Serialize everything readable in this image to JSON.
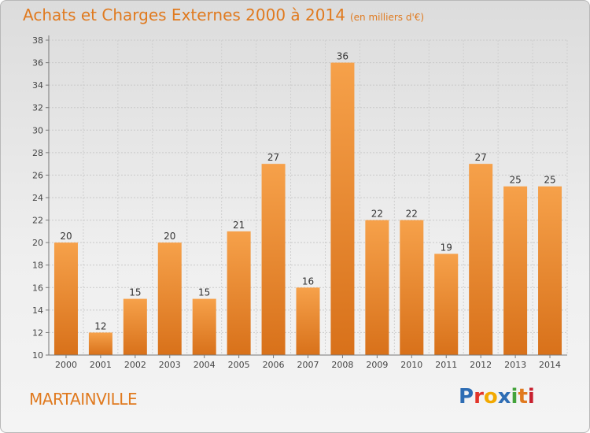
{
  "header": {
    "title": "Achats et Charges Externes 2000 à 2014",
    "subtitle": "(en milliers d'€)"
  },
  "footer": {
    "commune": "MARTAINVILLE",
    "brand": "Proxiti"
  },
  "colors": {
    "bar_light": "#f6a14a",
    "bar_dark": "#d8711a",
    "title": "#e07a1f"
  },
  "chart_data": {
    "type": "bar",
    "title": "Achats et Charges Externes 2000 à 2014",
    "subtitle": "(en milliers d'€)",
    "categories": [
      "2000",
      "2001",
      "2002",
      "2003",
      "2004",
      "2005",
      "2006",
      "2007",
      "2008",
      "2009",
      "2010",
      "2011",
      "2012",
      "2013",
      "2014"
    ],
    "values": [
      20,
      12,
      15,
      20,
      15,
      21,
      27,
      16,
      36,
      22,
      22,
      19,
      27,
      25,
      25
    ],
    "ylim": [
      10,
      38
    ],
    "yticks": [
      10,
      12,
      14,
      16,
      18,
      20,
      22,
      24,
      26,
      28,
      30,
      32,
      34,
      36,
      38
    ],
    "grid": true,
    "data_labels": true
  }
}
